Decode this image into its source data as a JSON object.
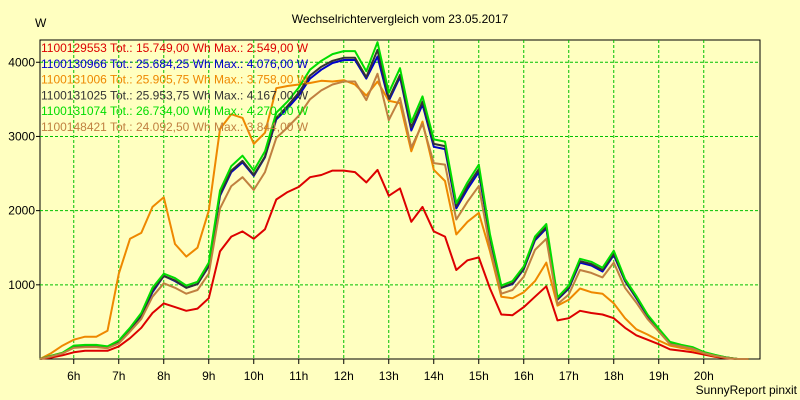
{
  "chart_data": {
    "type": "line",
    "title": "Wechselrichtervergleich vom 23.05.2017",
    "ylabel": "W",
    "footer": "SunnyReport pinxit",
    "ylim": [
      0,
      4300
    ],
    "xlim": [
      5.25,
      21.25
    ],
    "x_ticks": [
      6,
      7,
      8,
      9,
      10,
      11,
      12,
      13,
      14,
      15,
      16,
      17,
      18,
      19,
      20
    ],
    "x_tick_labels": [
      "6h",
      "7h",
      "8h",
      "9h",
      "10h",
      "11h",
      "12h",
      "13h",
      "14h",
      "15h",
      "16h",
      "17h",
      "18h",
      "19h",
      "20h"
    ],
    "y_ticks": [
      1000,
      2000,
      3000,
      4000
    ],
    "y_tick_labels": [
      "1000",
      "2000",
      "3000",
      "4000"
    ],
    "grid": true,
    "legend_position": "top-left",
    "x": [
      5.25,
      5.5,
      5.75,
      6.0,
      6.25,
      6.5,
      6.75,
      7.0,
      7.25,
      7.5,
      7.75,
      8.0,
      8.25,
      8.5,
      8.75,
      9.0,
      9.25,
      9.5,
      9.75,
      10.0,
      10.25,
      10.5,
      10.75,
      11.0,
      11.25,
      11.5,
      11.75,
      12.0,
      12.25,
      12.5,
      12.75,
      13.0,
      13.25,
      13.5,
      13.75,
      14.0,
      14.25,
      14.5,
      14.75,
      15.0,
      15.25,
      15.5,
      15.75,
      16.0,
      16.25,
      16.5,
      16.75,
      17.0,
      17.25,
      17.5,
      17.75,
      18.0,
      18.25,
      18.5,
      18.75,
      19.0,
      19.25,
      19.5,
      19.75,
      20.0,
      20.25,
      20.5,
      20.75,
      21.0
    ],
    "series": [
      {
        "name": "1100129553",
        "legend": "1100129553 Tot.: 15.749,00 Wh Max.: 2.549,00 W",
        "color": "#dd0000",
        "values": [
          0,
          20,
          50,
          90,
          110,
          110,
          110,
          170,
          280,
          420,
          620,
          750,
          700,
          650,
          680,
          820,
          1450,
          1650,
          1720,
          1620,
          1750,
          2150,
          2250,
          2320,
          2450,
          2480,
          2540,
          2540,
          2520,
          2380,
          2549,
          2200,
          2300,
          1850,
          2050,
          1720,
          1650,
          1200,
          1330,
          1370,
          950,
          600,
          590,
          700,
          840,
          980,
          520,
          550,
          650,
          620,
          600,
          550,
          420,
          320,
          260,
          200,
          130,
          110,
          90,
          60,
          30,
          10,
          0,
          0
        ]
      },
      {
        "name": "1100130966",
        "legend": "1100130966 Tot.: 25.684,25 Wh Max.: 4.076,00 W",
        "color": "#0000cc",
        "values": [
          0,
          40,
          80,
          160,
          180,
          180,
          160,
          230,
          400,
          580,
          900,
          1120,
          1050,
          960,
          1010,
          1250,
          2200,
          2520,
          2650,
          2470,
          2720,
          3230,
          3380,
          3550,
          3780,
          3900,
          3990,
          4030,
          4030,
          3780,
          4076,
          3480,
          3800,
          3080,
          3430,
          2860,
          2830,
          2030,
          2290,
          2520,
          1620,
          960,
          1010,
          1210,
          1600,
          1760,
          800,
          950,
          1300,
          1260,
          1180,
          1400,
          1050,
          820,
          580,
          400,
          220,
          180,
          150,
          90,
          50,
          20,
          0,
          0
        ]
      },
      {
        "name": "1100131006",
        "legend": "1100131006 Tot.: 25.905,75 Wh Max.: 3.758,00 W",
        "color": "#ee8800",
        "values": [
          0,
          80,
          180,
          260,
          300,
          300,
          380,
          1150,
          1620,
          1700,
          2050,
          2180,
          1550,
          1380,
          1500,
          2000,
          3100,
          3300,
          3250,
          2900,
          3050,
          3650,
          3680,
          3700,
          3720,
          3750,
          3740,
          3758,
          3700,
          3550,
          3740,
          3480,
          3450,
          2800,
          3200,
          2550,
          2400,
          1680,
          1850,
          1970,
          1450,
          840,
          820,
          900,
          1050,
          1300,
          720,
          800,
          950,
          900,
          880,
          750,
          550,
          400,
          330,
          250,
          180,
          150,
          120,
          80,
          40,
          20,
          0,
          0
        ]
      },
      {
        "name": "1100131025",
        "legend": "1100131025 Tot.: 25.953,75 Wh Max.: 4.167,00 W",
        "color": "#333333",
        "values": [
          0,
          40,
          80,
          170,
          180,
          180,
          160,
          230,
          400,
          590,
          920,
          1120,
          1060,
          960,
          1010,
          1260,
          2220,
          2540,
          2670,
          2480,
          2730,
          3250,
          3410,
          3590,
          3820,
          3940,
          4020,
          4060,
          4060,
          3800,
          4167,
          3510,
          3830,
          3120,
          3470,
          2900,
          2870,
          2060,
          2330,
          2560,
          1640,
          960,
          1020,
          1220,
          1620,
          1780,
          810,
          960,
          1320,
          1280,
          1200,
          1420,
          1060,
          830,
          590,
          400,
          220,
          180,
          150,
          90,
          50,
          20,
          0,
          0
        ]
      },
      {
        "name": "1100131074",
        "legend": "1100131074 Tot.: 26.734,00 Wh Max.: 4.270,00 W",
        "color": "#00dd00",
        "values": [
          0,
          45,
          85,
          180,
          190,
          190,
          170,
          250,
          420,
          620,
          960,
          1150,
          1090,
          990,
          1040,
          1300,
          2270,
          2600,
          2740,
          2540,
          2800,
          3320,
          3470,
          3660,
          3900,
          4020,
          4110,
          4150,
          4150,
          3880,
          4270,
          3590,
          3920,
          3190,
          3540,
          2960,
          2930,
          2100,
          2380,
          2620,
          1680,
          990,
          1050,
          1250,
          1650,
          1820,
          830,
          990,
          1350,
          1310,
          1230,
          1460,
          1080,
          850,
          600,
          410,
          230,
          190,
          160,
          95,
          55,
          20,
          0,
          0
        ]
      },
      {
        "name": "1100148421",
        "legend": "1100148421 Tot.: 24.092,50 Wh Max.: 3.844,00 W",
        "color": "#c08040",
        "values": [
          0,
          35,
          75,
          150,
          160,
          160,
          145,
          210,
          370,
          540,
          840,
          1020,
          960,
          880,
          930,
          1150,
          2030,
          2330,
          2450,
          2280,
          2520,
          2980,
          3120,
          3280,
          3500,
          3620,
          3700,
          3740,
          3740,
          3490,
          3844,
          3220,
          3520,
          2850,
          3170,
          2640,
          2620,
          1880,
          2120,
          2330,
          1500,
          880,
          930,
          1110,
          1470,
          1620,
          740,
          870,
          1200,
          1160,
          1100,
          1300,
          960,
          760,
          540,
          370,
          200,
          170,
          140,
          80,
          45,
          15,
          0,
          0
        ]
      }
    ]
  }
}
